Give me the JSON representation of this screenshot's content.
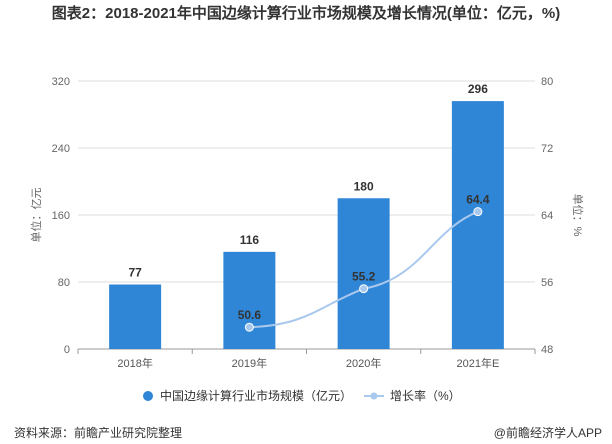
{
  "title": "图表2：2018-2021年中国边缘计算行业市场规模及增长情况(单位：亿元，%)",
  "source": "资料来源：前瞻产业研究院整理",
  "credit": "@前瞻经济学人APP",
  "colors": {
    "bar": "#2f86d6",
    "line": "#a9c8ee",
    "label": "#333333"
  },
  "chart_data": {
    "type": "bar+line",
    "categories": [
      "2018年",
      "2019年",
      "2020年",
      "2021年E"
    ],
    "series": [
      {
        "name": "中国边缘计算行业市场规模（亿元）",
        "type": "bar",
        "axis": "left",
        "values": [
          77,
          116,
          180,
          296
        ]
      },
      {
        "name": "增长率（%）",
        "type": "line",
        "axis": "right",
        "values": [
          null,
          50.6,
          55.2,
          64.4
        ]
      }
    ],
    "ylabel_left": "单位：亿元",
    "ylabel_right": "单位：%",
    "ylim_left": [
      0,
      320
    ],
    "yticks_left": [
      "0",
      "80",
      "160",
      "240",
      "320"
    ],
    "ylim_right": [
      48,
      80
    ],
    "yticks_right": [
      "48",
      "56",
      "64",
      "72",
      "80"
    ],
    "legend": "bottom",
    "grid": true
  }
}
